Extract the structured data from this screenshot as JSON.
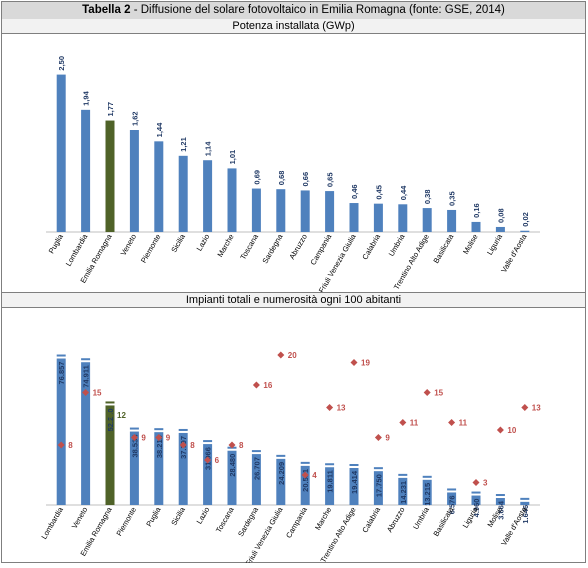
{
  "header": {
    "title_bold": "Tabella 2",
    "title_rest": " - Diffusione del solare fotovoltaico in Emilia Romagna (fonte: GSE, 2014)"
  },
  "chart_data": [
    {
      "type": "bar",
      "title": "Potenza installata (GWp)",
      "categories": [
        "Puglia",
        "Lombardia",
        "Emilia Romagna",
        "Veneto",
        "Piemonte",
        "Sicilia",
        "Lazio",
        "Marche",
        "Toscana",
        "Sardegna",
        "Abruzzo",
        "Campania",
        "Friuli Venezia Giulia",
        "Calabria",
        "Umbria",
        "Trentino Alto Adige",
        "Basilicata",
        "Molise",
        "Liguria",
        "Valle d'Aosta"
      ],
      "values": [
        2.5,
        1.94,
        1.77,
        1.62,
        1.44,
        1.21,
        1.14,
        1.01,
        0.69,
        0.68,
        0.66,
        0.65,
        0.46,
        0.45,
        0.44,
        0.38,
        0.35,
        0.16,
        0.08,
        0.02
      ],
      "value_labels": [
        "2,50",
        "1,94",
        "1,77",
        "1,62",
        "1,44",
        "1,21",
        "1,14",
        "1,01",
        "0,69",
        "0,68",
        "0,66",
        "0,65",
        "0,46",
        "0,45",
        "0,44",
        "0,38",
        "0,35",
        "0,16",
        "0,08",
        "0,02"
      ],
      "highlight": "Emilia Romagna",
      "ylim": [
        0,
        2.7
      ],
      "grid": false,
      "colors": {
        "bar": "#4f81bd",
        "highlight": "#4f6228",
        "label": "#1f3864",
        "axis": "#bfbfbf"
      }
    },
    {
      "type": "bar",
      "title": "Impianti totali e numerosità ogni 100 abitanti",
      "categories": [
        "Lombardia",
        "Veneto",
        "Emilia Romagna",
        "Piemonte",
        "Puglia",
        "Sicilia",
        "Lazio",
        "Toscana",
        "Sardegna",
        "Friuli Venezia Giulia",
        "Campania",
        "Marche",
        "Trentino Alto Adige",
        "Calabria",
        "Abruzzo",
        "Umbria",
        "Basilicata",
        "Liguria",
        "Molise",
        "Valle d'Aosta"
      ],
      "values": [
        76857,
        74911,
        52230,
        38534,
        38215,
        37797,
        31966,
        28480,
        26707,
        24209,
        20531,
        19811,
        19414,
        17750,
        14231,
        13215,
        6576,
        4960,
        3664,
        1646
      ],
      "value_labels": [
        "76.857",
        "74.911",
        "52.230",
        "38.534",
        "38.215",
        "37.797",
        "31.966",
        "28.480",
        "26.707",
        "24.209",
        "20.531",
        "19.811",
        "19.414",
        "17.750",
        "14.231",
        "13.215",
        "6.576",
        "4.960",
        "3.664",
        "1.646"
      ],
      "series2": {
        "values": [
          8,
          15,
          12,
          9,
          9,
          8,
          6,
          8,
          16,
          20,
          4,
          13,
          19,
          9,
          11,
          15,
          11,
          3,
          10,
          13
        ],
        "marker": "diamond",
        "color": "#c0504d",
        "highlight_color": "#4f6228"
      },
      "highlight": "Emilia Romagna",
      "ylim": [
        0,
        85000
      ],
      "y2lim": [
        0,
        22
      ],
      "grid": false,
      "colors": {
        "bar": "#4f81bd",
        "highlight": "#4f6228",
        "label": "#1f3864",
        "axis": "#bfbfbf"
      }
    }
  ]
}
